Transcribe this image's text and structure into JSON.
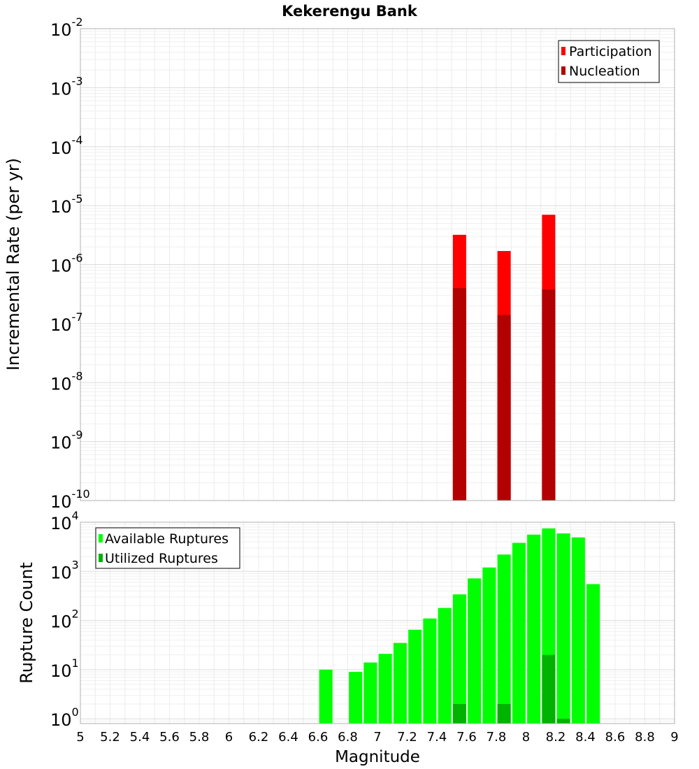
{
  "chart_data": [
    {
      "type": "bar",
      "title": "Kekerengu Bank",
      "ylabel": "Incremental Rate (per yr)",
      "xlabel": "",
      "y_scale": "log",
      "ylim": [
        1e-10,
        0.01
      ],
      "xlim": [
        5,
        9
      ],
      "grid": true,
      "legend_position": "top-right",
      "y_tick_labels": [
        {
          "base": "10",
          "exp": "-10"
        },
        {
          "base": "10",
          "exp": "-9"
        },
        {
          "base": "10",
          "exp": "-8"
        },
        {
          "base": "10",
          "exp": "-7"
        },
        {
          "base": "10",
          "exp": "-6"
        },
        {
          "base": "10",
          "exp": "-5"
        },
        {
          "base": "10",
          "exp": "-4"
        },
        {
          "base": "10",
          "exp": "-3"
        },
        {
          "base": "10",
          "exp": "-2"
        }
      ],
      "series": [
        {
          "name": "Participation",
          "color": "#ff0000",
          "points": [
            {
              "x": 7.55,
              "y": 3.2e-06
            },
            {
              "x": 7.85,
              "y": 1.7e-06
            },
            {
              "x": 8.15,
              "y": 7e-06
            }
          ]
        },
        {
          "name": "Nucleation",
          "color": "#b30000",
          "points": [
            {
              "x": 7.55,
              "y": 4e-07
            },
            {
              "x": 7.85,
              "y": 1.4e-07
            },
            {
              "x": 8.15,
              "y": 3.8e-07
            }
          ]
        }
      ]
    },
    {
      "type": "bar",
      "title": "",
      "ylabel": "Rupture Count",
      "xlabel": "Magnitude",
      "y_scale": "log",
      "ylim": [
        0.8,
        10000
      ],
      "xlim": [
        5,
        9
      ],
      "grid": true,
      "legend_position": "top-left",
      "x_tick_labels": [
        "5",
        "5.2",
        "5.4",
        "5.6",
        "5.8",
        "6",
        "6.2",
        "6.4",
        "6.6",
        "6.8",
        "7",
        "7.2",
        "7.4",
        "7.6",
        "7.8",
        "8",
        "8.2",
        "8.4",
        "8.6",
        "8.8",
        "9"
      ],
      "y_tick_labels": [
        {
          "base": "10",
          "exp": "0"
        },
        {
          "base": "10",
          "exp": "1"
        },
        {
          "base": "10",
          "exp": "2"
        },
        {
          "base": "10",
          "exp": "3"
        },
        {
          "base": "10",
          "exp": "4"
        }
      ],
      "series": [
        {
          "name": "Available Ruptures",
          "color": "#00ff00",
          "points": [
            {
              "x": 6.65,
              "y": 10
            },
            {
              "x": 6.85,
              "y": 9
            },
            {
              "x": 6.95,
              "y": 14
            },
            {
              "x": 7.05,
              "y": 21
            },
            {
              "x": 7.15,
              "y": 35
            },
            {
              "x": 7.25,
              "y": 65
            },
            {
              "x": 7.35,
              "y": 110
            },
            {
              "x": 7.45,
              "y": 180
            },
            {
              "x": 7.55,
              "y": 340
            },
            {
              "x": 7.65,
              "y": 720
            },
            {
              "x": 7.75,
              "y": 1200
            },
            {
              "x": 7.85,
              "y": 2200
            },
            {
              "x": 7.95,
              "y": 3800
            },
            {
              "x": 8.05,
              "y": 5600
            },
            {
              "x": 8.15,
              "y": 7500
            },
            {
              "x": 8.25,
              "y": 5900
            },
            {
              "x": 8.35,
              "y": 4900
            },
            {
              "x": 8.45,
              "y": 550
            }
          ]
        },
        {
          "name": "Utilized Ruptures",
          "color": "#00b300",
          "points": [
            {
              "x": 7.55,
              "y": 2
            },
            {
              "x": 7.85,
              "y": 2
            },
            {
              "x": 8.15,
              "y": 20
            },
            {
              "x": 8.25,
              "y": 1
            }
          ]
        }
      ]
    }
  ]
}
